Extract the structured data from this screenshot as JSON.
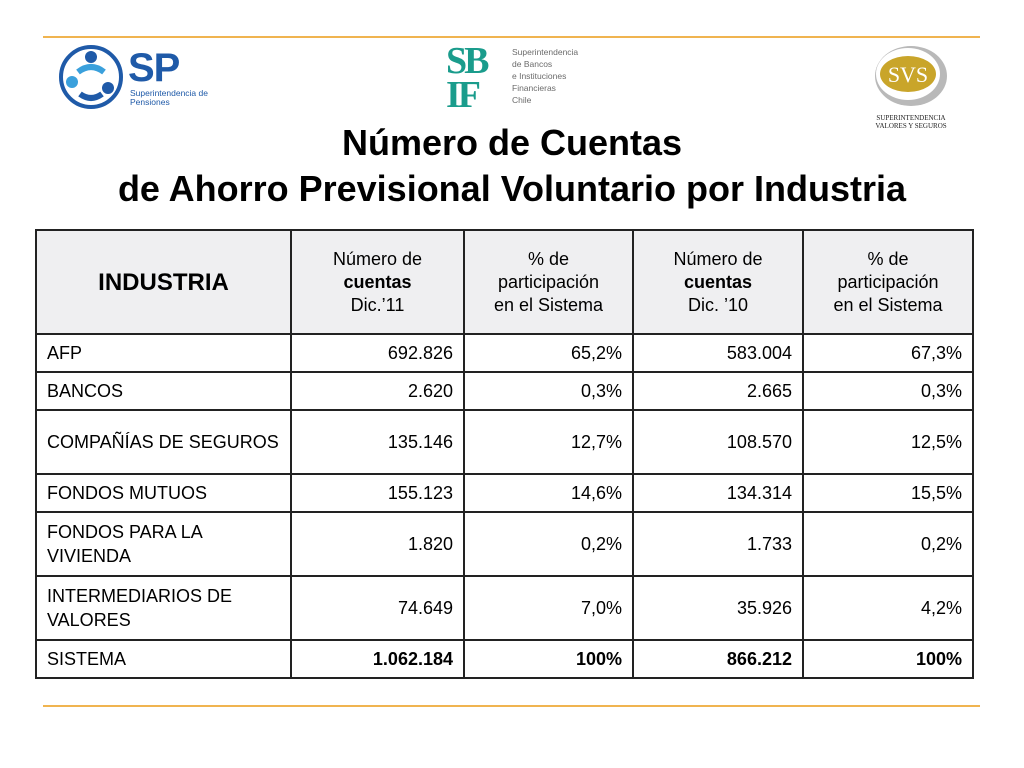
{
  "logos": {
    "sp": {
      "mark": "SP",
      "subtitle": "Superintendencia de Pensiones"
    },
    "sbif": {
      "mark_line1": "SB",
      "mark_line2": "IF",
      "lines": [
        "Superintendencia",
        "de Bancos",
        "e Instituciones",
        "Financieras",
        "Chile"
      ]
    },
    "svs": {
      "mark": "SVS",
      "caption_line1": "SUPERINTENDENCIA",
      "caption_line2": "VALORES Y SEGUROS"
    }
  },
  "title": {
    "line1": "Número de Cuentas",
    "line2": "de Ahorro Previsional Voluntario por Industria"
  },
  "table": {
    "headers": {
      "industry": "INDUSTRIA",
      "col1": [
        "Número de",
        "cuentas",
        "Dic.’11"
      ],
      "col2": [
        "% de",
        "participación",
        "en el Sistema"
      ],
      "col3": [
        "Número de",
        "cuentas",
        "Dic. ’10"
      ],
      "col4": [
        "% de",
        "participación",
        "en el Sistema"
      ]
    },
    "rows": [
      {
        "industry": "AFP",
        "c1": "692.826",
        "c2": "65,2%",
        "c3": "583.004",
        "c4": "67,3%"
      },
      {
        "industry": "BANCOS",
        "c1": "2.620",
        "c2": "0,3%",
        "c3": "2.665",
        "c4": "0,3%"
      },
      {
        "industry": "COMPAÑÍAS DE SEGUROS",
        "c1": "135.146",
        "c2": "12,7%",
        "c3": "108.570",
        "c4": "12,5%"
      },
      {
        "industry": "FONDOS MUTUOS",
        "c1": "155.123",
        "c2": "14,6%",
        "c3": "134.314",
        "c4": "15,5%"
      },
      {
        "industry": "FONDOS PARA LA VIVIENDA",
        "c1": "1.820",
        "c2": "0,2%",
        "c3": "1.733",
        "c4": "0,2%"
      },
      {
        "industry": "INTERMEDIARIOS DE VALORES",
        "c1": "74.649",
        "c2": "7,0%",
        "c3": "35.926",
        "c4": "4,2%"
      },
      {
        "industry": "SISTEMA",
        "c1": "1.062.184",
        "c2": "100%",
        "c3": "866.212",
        "c4": "100%"
      }
    ]
  },
  "colors": {
    "rule": "#f0b450",
    "header_bg": "#efeff1",
    "sp_blue": "#1f5aa8",
    "sbif_teal": "#1a9c8c",
    "svs_gold": "#c9a52a"
  }
}
